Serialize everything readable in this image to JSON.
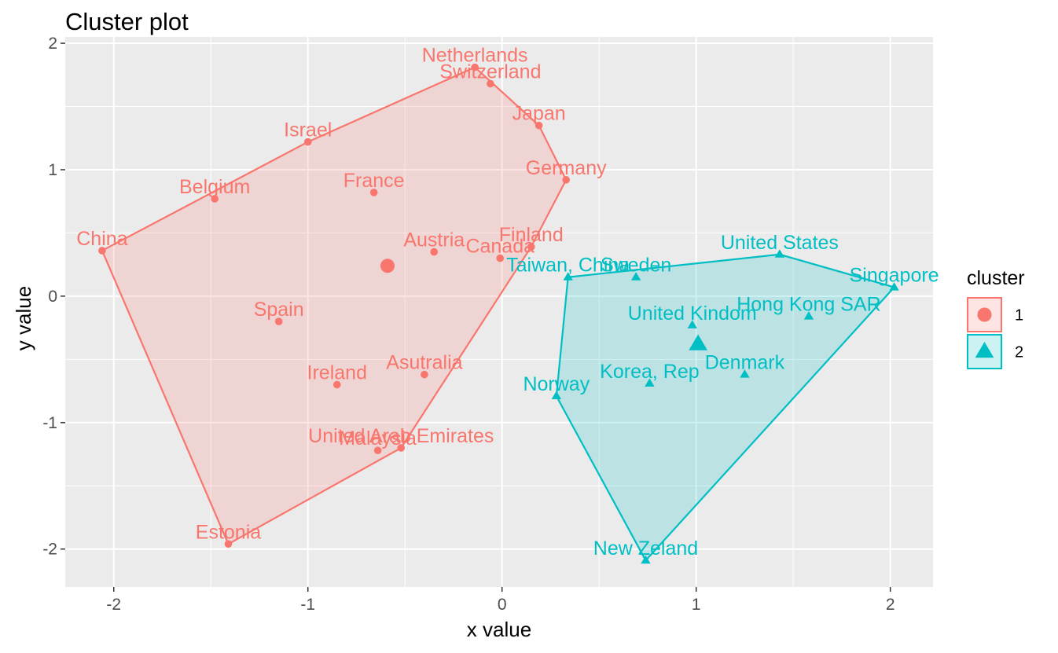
{
  "chart_data": {
    "type": "scatter",
    "title": "Cluster plot",
    "xlabel": "x value",
    "ylabel": "y value",
    "xlim": [
      -2.25,
      2.22
    ],
    "ylim": [
      -2.3,
      2.05
    ],
    "xticks": [
      -2,
      -1,
      0,
      1,
      2
    ],
    "yticks": [
      -2,
      -1,
      0,
      1,
      2
    ],
    "xtick_labels": [
      "-2",
      "-1",
      "0",
      "1",
      "2"
    ],
    "ytick_labels": [
      "-2",
      "-1",
      "0",
      "1",
      "2"
    ],
    "grid": true,
    "legend": {
      "title": "cluster",
      "placement": "right",
      "entries": [
        {
          "label": "1",
          "shape": "circle"
        },
        {
          "label": "2",
          "shape": "triangle"
        }
      ]
    },
    "colors": {
      "cluster_1": "#f8766d",
      "cluster_2": "#00bfc4",
      "panel": "#ebebeb",
      "grid": "#ffffff",
      "tick_text": "#4d4d4d"
    },
    "series": [
      {
        "name": "1",
        "shape": "circle",
        "points": [
          {
            "label": "Netherlands",
            "x": -0.14,
            "y": 1.81
          },
          {
            "label": "Switzerland",
            "x": -0.06,
            "y": 1.68
          },
          {
            "label": "Japan",
            "x": 0.19,
            "y": 1.35
          },
          {
            "label": "Israel",
            "x": -1.0,
            "y": 1.22
          },
          {
            "label": "Germany",
            "x": 0.33,
            "y": 0.92
          },
          {
            "label": "France",
            "x": -0.66,
            "y": 0.82
          },
          {
            "label": "Belgium",
            "x": -1.48,
            "y": 0.77
          },
          {
            "label": "China",
            "x": -2.06,
            "y": 0.36
          },
          {
            "label": "Austria",
            "x": -0.35,
            "y": 0.35
          },
          {
            "label": "Finland",
            "x": 0.15,
            "y": 0.39
          },
          {
            "label": "Canada",
            "x": -0.01,
            "y": 0.3
          },
          {
            "label": "Spain",
            "x": -1.15,
            "y": -0.2
          },
          {
            "label": "Asutralia",
            "x": -0.4,
            "y": -0.62
          },
          {
            "label": "Ireland",
            "x": -0.85,
            "y": -0.7
          },
          {
            "label": "United Arab Emirates",
            "x": -0.52,
            "y": -1.2
          },
          {
            "label": "Malaysia",
            "x": -0.64,
            "y": -1.22
          },
          {
            "label": "Estonia",
            "x": -1.41,
            "y": -1.96
          }
        ],
        "centroid": {
          "x": -0.59,
          "y": 0.24
        },
        "hull": [
          "Netherlands",
          "Japan",
          "Germany",
          "Finland",
          "United Arab Emirates",
          "Estonia",
          "China",
          "Israel"
        ]
      },
      {
        "name": "2",
        "shape": "triangle",
        "points": [
          {
            "label": "United States",
            "x": 1.43,
            "y": 0.33
          },
          {
            "label": "Singapore",
            "x": 2.02,
            "y": 0.07
          },
          {
            "label": "Taiwan, China",
            "x": 0.34,
            "y": 0.15
          },
          {
            "label": "Sweden",
            "x": 0.69,
            "y": 0.15
          },
          {
            "label": "Hong Kong SAR",
            "x": 1.58,
            "y": -0.16
          },
          {
            "label": "United Kindom",
            "x": 0.98,
            "y": -0.23
          },
          {
            "label": "Denmark",
            "x": 1.25,
            "y": -0.62
          },
          {
            "label": "Korea, Rep",
            "x": 0.76,
            "y": -0.69
          },
          {
            "label": "Norway",
            "x": 0.28,
            "y": -0.79
          },
          {
            "label": "New Zeland",
            "x": 0.74,
            "y": -2.09
          }
        ],
        "centroid": {
          "x": 1.01,
          "y": -0.38
        },
        "hull": [
          "Taiwan, China",
          "United States",
          "Singapore",
          "New Zeland",
          "Norway"
        ]
      }
    ]
  }
}
